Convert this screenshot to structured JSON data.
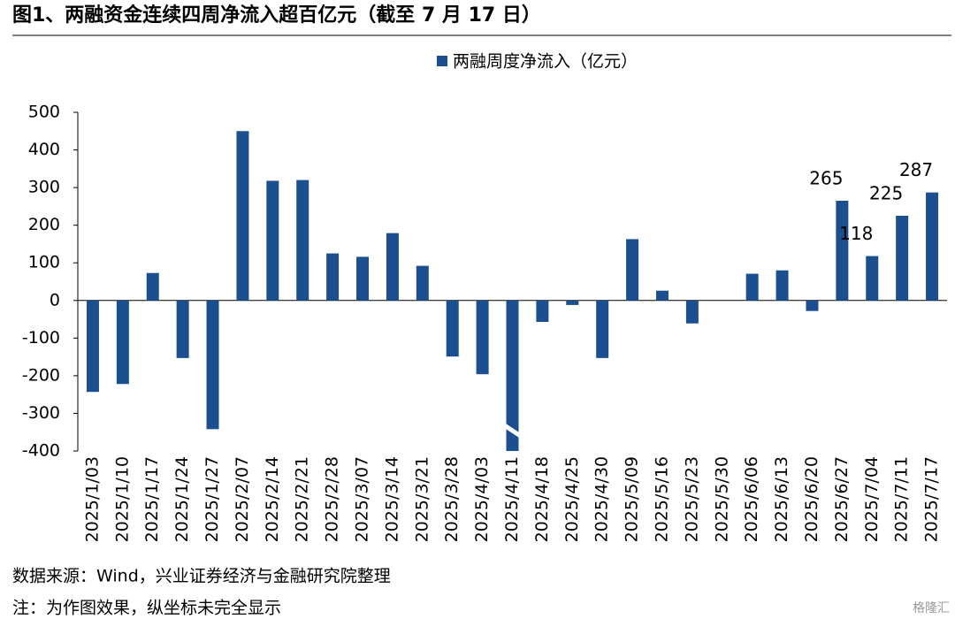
{
  "chart_data": {
    "type": "bar",
    "title": "图1、两融资金连续四周净流入超百亿元（截至 7 月 17 日）",
    "categories": [
      "2025/1/03",
      "2025/1/10",
      "2025/1/17",
      "2025/1/24",
      "2025/1/27",
      "2025/2/07",
      "2025/2/14",
      "2025/2/21",
      "2025/2/28",
      "2025/3/07",
      "2025/3/14",
      "2025/3/21",
      "2025/3/28",
      "2025/4/03",
      "2025/4/11",
      "2025/4/18",
      "2025/4/25",
      "2025/4/30",
      "2025/5/09",
      "2025/5/16",
      "2025/5/23",
      "2025/5/30",
      "2025/6/06",
      "2025/6/13",
      "2025/6/20",
      "2025/6/27",
      "2025/7/04",
      "2025/7/11",
      "2025/7/17"
    ],
    "series": [
      {
        "name": "两融周度净流入（亿元）",
        "color": "#1b4f8f",
        "values": [
          -243,
          -222,
          73,
          -153,
          -342,
          450,
          318,
          320,
          125,
          116,
          179,
          92,
          -149,
          -196,
          -400,
          -57,
          -12,
          -153,
          163,
          26,
          -61,
          0,
          71,
          80,
          -28,
          265,
          118,
          225,
          287
        ],
        "show_labels": [
          false,
          false,
          false,
          false,
          false,
          false,
          false,
          false,
          false,
          false,
          false,
          false,
          false,
          false,
          false,
          false,
          false,
          false,
          false,
          false,
          false,
          false,
          false,
          false,
          false,
          true,
          true,
          true,
          true
        ]
      }
    ],
    "ylim": [
      -400,
      500
    ],
    "yticks": [
      -400,
      -300,
      -200,
      -100,
      0,
      100,
      200,
      300,
      400,
      500
    ],
    "axis_break_index": 14,
    "source": "数据来源：Wind，兴业证券经济与金融研究院整理",
    "note": "注：为作图效果，纵坐标未完全显示",
    "watermark": "格隆汇"
  }
}
